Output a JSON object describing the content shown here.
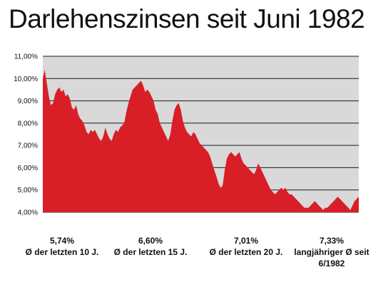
{
  "title": "Darlehenszinsen seit Juni 1982",
  "chart_data": {
    "type": "area",
    "ylim": [
      4.0,
      11.0
    ],
    "yticks": [
      "4,00%",
      "5,00%",
      "6,00%",
      "7,00%",
      "8,00%",
      "9,00%",
      "10,00%",
      "11,00%"
    ],
    "ytick_values": [
      4,
      5,
      6,
      7,
      8,
      9,
      10,
      11
    ],
    "grid": true,
    "colors": {
      "area": "#d81e27",
      "plot_background": "#d9d9d9",
      "grid": "#1a1a1a"
    },
    "x": [
      1982.42,
      1982.6,
      1982.8,
      1983.0,
      1983.2,
      1983.4,
      1983.6,
      1983.8,
      1984.0,
      1984.2,
      1984.4,
      1984.6,
      1984.8,
      1985.0,
      1985.2,
      1985.4,
      1985.6,
      1985.8,
      1986.0,
      1986.2,
      1986.4,
      1986.6,
      1986.8,
      1987.0,
      1987.2,
      1987.4,
      1987.6,
      1987.8,
      1988.0,
      1988.2,
      1988.4,
      1988.6,
      1988.8,
      1989.0,
      1989.2,
      1989.4,
      1989.6,
      1989.8,
      1990.0,
      1990.2,
      1990.4,
      1990.6,
      1990.8,
      1991.0,
      1991.2,
      1991.4,
      1991.6,
      1991.8,
      1992.0,
      1992.2,
      1992.4,
      1992.6,
      1992.8,
      1993.0,
      1993.2,
      1993.4,
      1993.6,
      1993.8,
      1994.0,
      1994.2,
      1994.4,
      1994.6,
      1994.8,
      1995.0,
      1995.2,
      1995.4,
      1995.6,
      1995.8,
      1996.0,
      1996.2,
      1996.4,
      1996.6,
      1996.8,
      1997.0,
      1997.2,
      1997.4,
      1997.6,
      1997.8,
      1998.0,
      1998.2,
      1998.4,
      1998.6,
      1998.8,
      1999.0,
      1999.2,
      1999.4,
      1999.6,
      1999.8,
      2000.0,
      2000.2,
      2000.4,
      2000.6,
      2000.8,
      2001.0,
      2001.2,
      2001.4,
      2001.6,
      2001.8,
      2002.0,
      2002.2,
      2002.4,
      2002.6,
      2002.8,
      2003.0,
      2003.2,
      2003.4,
      2003.6,
      2003.8,
      2004.0,
      2004.2,
      2004.4,
      2004.6,
      2004.8,
      2005.0,
      2005.2,
      2005.4,
      2005.6,
      2005.8,
      2006.0,
      2006.2,
      2006.4,
      2006.6,
      2006.8,
      2007.0,
      2007.2,
      2007.4,
      2007.6,
      2007.8,
      2008.0,
      2008.2,
      2008.4,
      2008.6,
      2008.8,
      2009.0,
      2009.2,
      2009.4,
      2009.6,
      2009.8,
      2010.0,
      2010.2,
      2010.4,
      2010.6,
      2010.8,
      2011.0,
      2011.2,
      2011.4,
      2011.6,
      2011.8,
      2012.0,
      2012.2,
      2012.4,
      2012.6
    ],
    "values": [
      10.0,
      10.4,
      9.8,
      9.2,
      8.8,
      8.9,
      9.3,
      9.5,
      9.6,
      9.4,
      9.5,
      9.2,
      9.3,
      9.1,
      8.7,
      8.6,
      8.8,
      8.4,
      8.2,
      8.1,
      7.9,
      7.6,
      7.5,
      7.7,
      7.6,
      7.7,
      7.5,
      7.3,
      7.2,
      7.4,
      7.8,
      7.5,
      7.3,
      7.2,
      7.5,
      7.7,
      7.6,
      7.8,
      7.9,
      8.0,
      8.5,
      8.9,
      9.2,
      9.5,
      9.6,
      9.7,
      9.8,
      9.9,
      9.7,
      9.4,
      9.5,
      9.4,
      9.2,
      9.0,
      8.6,
      8.4,
      8.0,
      7.8,
      7.6,
      7.4,
      7.2,
      7.5,
      8.1,
      8.6,
      8.8,
      8.9,
      8.6,
      8.1,
      7.8,
      7.6,
      7.5,
      7.4,
      7.6,
      7.5,
      7.3,
      7.1,
      7.0,
      6.9,
      6.8,
      6.7,
      6.5,
      6.2,
      5.9,
      5.6,
      5.3,
      5.1,
      5.2,
      5.9,
      6.4,
      6.6,
      6.7,
      6.6,
      6.5,
      6.6,
      6.7,
      6.4,
      6.2,
      6.1,
      6.0,
      5.9,
      5.8,
      5.7,
      5.9,
      6.2,
      6.0,
      5.8,
      5.6,
      5.4,
      5.2,
      5.0,
      4.9,
      4.8,
      4.9,
      5.0,
      5.1,
      5.0,
      5.1,
      4.9,
      4.8,
      4.8,
      4.7,
      4.6,
      4.5,
      4.4,
      4.3,
      4.2,
      4.2,
      4.2,
      4.3,
      4.4,
      4.5,
      4.4,
      4.3,
      4.2,
      4.1,
      4.2,
      4.2,
      4.3,
      4.4,
      4.5,
      4.6,
      4.7,
      4.6,
      4.5,
      4.4,
      4.3,
      4.2,
      4.1,
      4.3,
      4.5,
      4.6,
      4.7
    ]
  },
  "stats": [
    {
      "value": "5,74%",
      "label": "Ø der letzten 10 J."
    },
    {
      "value": "6,60%",
      "label": "Ø der letzten 15 J."
    },
    {
      "value": "7,01%",
      "label": "Ø der letzten 20 J."
    },
    {
      "value": "7,33%",
      "label": "langjähriger Ø seit 6/1982"
    }
  ]
}
